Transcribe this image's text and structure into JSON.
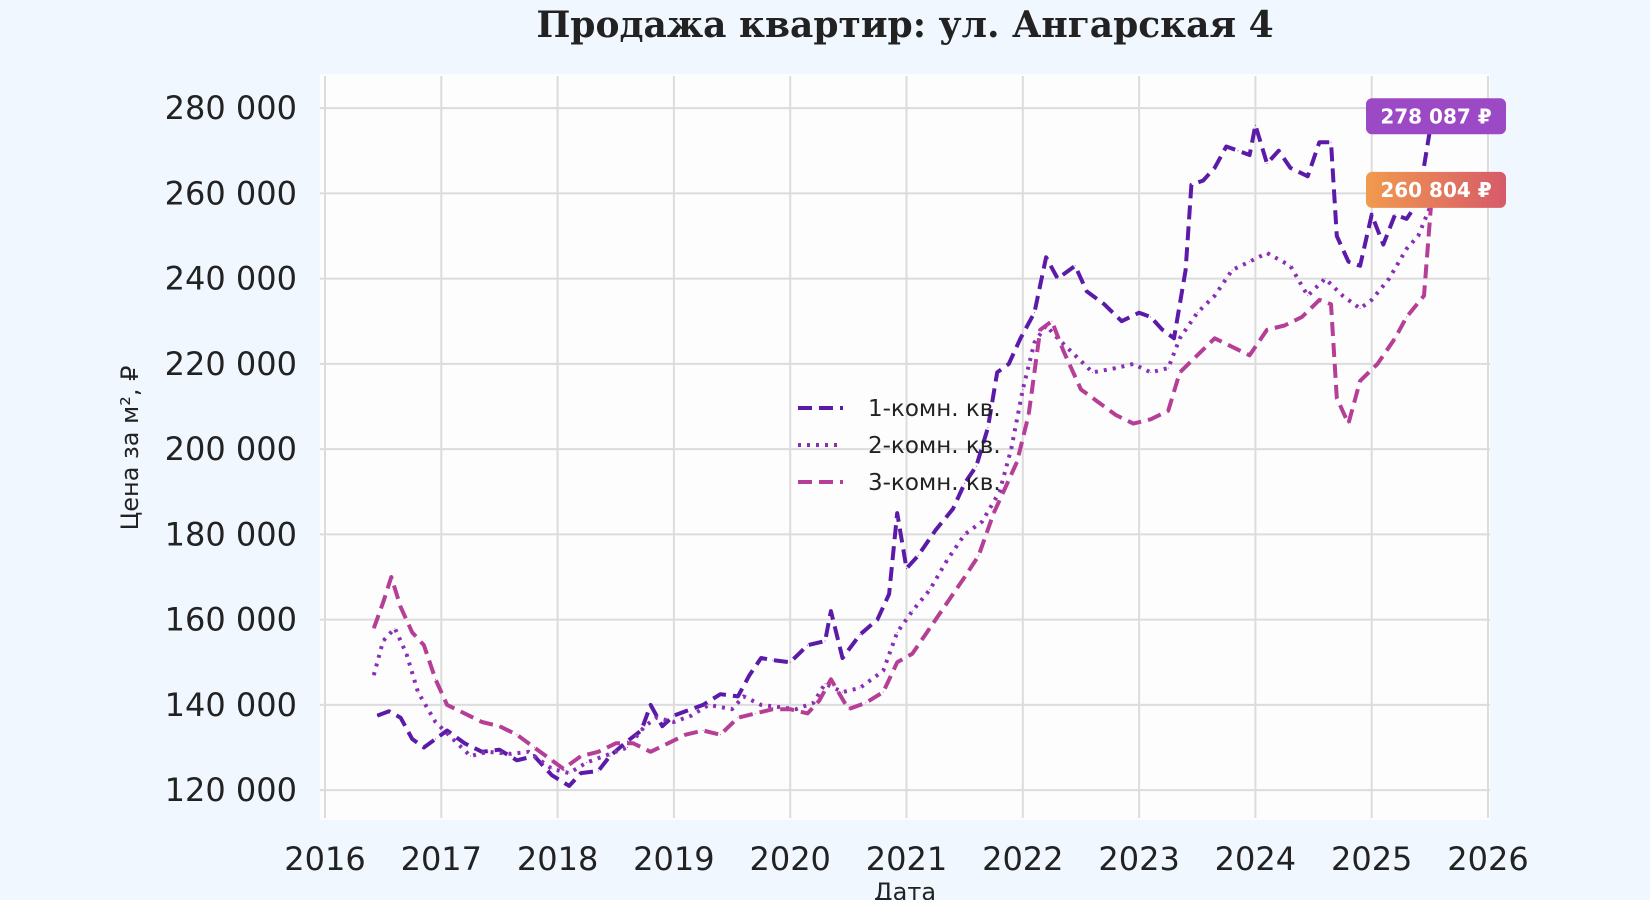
{
  "chart_data": {
    "type": "line",
    "title": "Продажа квартир: ул. Ангарская 4",
    "xlabel": "Дата",
    "ylabel": "Цена за м², ₽",
    "xlim": [
      2016,
      2026
    ],
    "ylim": [
      113000,
      288000
    ],
    "x_ticks": [
      "2016",
      "2017",
      "2018",
      "2019",
      "2020",
      "2021",
      "2022",
      "2023",
      "2024",
      "2025",
      "2026"
    ],
    "y_ticks": [
      "120 000",
      "140 000",
      "160 000",
      "180 000",
      "200 000",
      "220 000",
      "240 000",
      "260 000",
      "280 000"
    ],
    "grid": true,
    "legend_position": "center",
    "series": [
      {
        "name": "1-комн. кв.",
        "color": "#5b1aa8",
        "dash": "dashed",
        "points": [
          [
            2016.45,
            137500
          ],
          [
            2016.55,
            138500
          ],
          [
            2016.65,
            137000
          ],
          [
            2016.75,
            132000
          ],
          [
            2016.85,
            130000
          ],
          [
            2016.95,
            132000
          ],
          [
            2017.05,
            134000
          ],
          [
            2017.2,
            131000
          ],
          [
            2017.35,
            129000
          ],
          [
            2017.5,
            129500
          ],
          [
            2017.65,
            127000
          ],
          [
            2017.8,
            128000
          ],
          [
            2017.95,
            123500
          ],
          [
            2018.1,
            121000
          ],
          [
            2018.2,
            124000
          ],
          [
            2018.35,
            124500
          ],
          [
            2018.45,
            128000
          ],
          [
            2018.6,
            131500
          ],
          [
            2018.72,
            134000
          ],
          [
            2018.8,
            140000
          ],
          [
            2018.9,
            135000
          ],
          [
            2019.0,
            137500
          ],
          [
            2019.1,
            138500
          ],
          [
            2019.25,
            140000
          ],
          [
            2019.4,
            142500
          ],
          [
            2019.55,
            142000
          ],
          [
            2019.65,
            147000
          ],
          [
            2019.75,
            151000
          ],
          [
            2019.85,
            150500
          ],
          [
            2020.0,
            150000
          ],
          [
            2020.15,
            154000
          ],
          [
            2020.3,
            155000
          ],
          [
            2020.35,
            162000
          ],
          [
            2020.45,
            151000
          ],
          [
            2020.6,
            156500
          ],
          [
            2020.75,
            160000
          ],
          [
            2020.85,
            166000
          ],
          [
            2020.92,
            185000
          ],
          [
            2021.0,
            172000
          ],
          [
            2021.1,
            175000
          ],
          [
            2021.25,
            181000
          ],
          [
            2021.4,
            186000
          ],
          [
            2021.5,
            192000
          ],
          [
            2021.6,
            196000
          ],
          [
            2021.7,
            205000
          ],
          [
            2021.78,
            218000
          ],
          [
            2021.88,
            220000
          ],
          [
            2021.98,
            226000
          ],
          [
            2022.1,
            232000
          ],
          [
            2022.2,
            245000
          ],
          [
            2022.3,
            240000
          ],
          [
            2022.45,
            243000
          ],
          [
            2022.55,
            237000
          ],
          [
            2022.7,
            234000
          ],
          [
            2022.85,
            230000
          ],
          [
            2023.0,
            232000
          ],
          [
            2023.1,
            231000
          ],
          [
            2023.2,
            228000
          ],
          [
            2023.3,
            226000
          ],
          [
            2023.4,
            242000
          ],
          [
            2023.45,
            262000
          ],
          [
            2023.55,
            263000
          ],
          [
            2023.65,
            266000
          ],
          [
            2023.75,
            271000
          ],
          [
            2023.85,
            270000
          ],
          [
            2023.95,
            269000
          ],
          [
            2024.0,
            276000
          ],
          [
            2024.1,
            267000
          ],
          [
            2024.2,
            270000
          ],
          [
            2024.3,
            266000
          ],
          [
            2024.45,
            264000
          ],
          [
            2024.55,
            272000
          ],
          [
            2024.65,
            272000
          ],
          [
            2024.7,
            250000
          ],
          [
            2024.8,
            244000
          ],
          [
            2024.9,
            243000
          ],
          [
            2025.0,
            255000
          ],
          [
            2025.1,
            248000
          ],
          [
            2025.2,
            255000
          ],
          [
            2025.3,
            254000
          ],
          [
            2025.4,
            258000
          ],
          [
            2025.52,
            278087
          ]
        ]
      },
      {
        "name": "2-комн. кв.",
        "color": "#8a2fb5",
        "dash": "dotted",
        "points": [
          [
            2016.42,
            147000
          ],
          [
            2016.5,
            155000
          ],
          [
            2016.6,
            158000
          ],
          [
            2016.7,
            152000
          ],
          [
            2016.8,
            143000
          ],
          [
            2016.95,
            136000
          ],
          [
            2017.1,
            132000
          ],
          [
            2017.25,
            128000
          ],
          [
            2017.4,
            129000
          ],
          [
            2017.6,
            128500
          ],
          [
            2017.75,
            129000
          ],
          [
            2017.95,
            125000
          ],
          [
            2018.1,
            124000
          ],
          [
            2018.25,
            126500
          ],
          [
            2018.45,
            128500
          ],
          [
            2018.6,
            130000
          ],
          [
            2018.75,
            135000
          ],
          [
            2018.85,
            137000
          ],
          [
            2019.0,
            136000
          ],
          [
            2019.15,
            137500
          ],
          [
            2019.3,
            140000
          ],
          [
            2019.5,
            139000
          ],
          [
            2019.6,
            142000
          ],
          [
            2019.75,
            140000
          ],
          [
            2019.9,
            139500
          ],
          [
            2020.05,
            139000
          ],
          [
            2020.2,
            140500
          ],
          [
            2020.3,
            145000
          ],
          [
            2020.45,
            143000
          ],
          [
            2020.6,
            144000
          ],
          [
            2020.8,
            148000
          ],
          [
            2020.92,
            157000
          ],
          [
            2021.05,
            162000
          ],
          [
            2021.2,
            167000
          ],
          [
            2021.35,
            174000
          ],
          [
            2021.5,
            180000
          ],
          [
            2021.65,
            183000
          ],
          [
            2021.8,
            190000
          ],
          [
            2021.9,
            200000
          ],
          [
            2022.0,
            214000
          ],
          [
            2022.1,
            225000
          ],
          [
            2022.2,
            229000
          ],
          [
            2022.3,
            226000
          ],
          [
            2022.45,
            222000
          ],
          [
            2022.6,
            218000
          ],
          [
            2022.8,
            219000
          ],
          [
            2022.95,
            220000
          ],
          [
            2023.1,
            218000
          ],
          [
            2023.25,
            219000
          ],
          [
            2023.35,
            226000
          ],
          [
            2023.5,
            232000
          ],
          [
            2023.65,
            236000
          ],
          [
            2023.8,
            242000
          ],
          [
            2023.95,
            244000
          ],
          [
            2024.1,
            246000
          ],
          [
            2024.3,
            243000
          ],
          [
            2024.45,
            236000
          ],
          [
            2024.6,
            240000
          ],
          [
            2024.75,
            236000
          ],
          [
            2024.9,
            233000
          ],
          [
            2025.0,
            235000
          ],
          [
            2025.15,
            240000
          ],
          [
            2025.3,
            247000
          ],
          [
            2025.4,
            250000
          ],
          [
            2025.52,
            258000
          ]
        ]
      },
      {
        "name": "3-комн. кв.",
        "color": "#b53f96",
        "dash": "dashed",
        "points": [
          [
            2016.42,
            158000
          ],
          [
            2016.5,
            164000
          ],
          [
            2016.57,
            170000
          ],
          [
            2016.65,
            163000
          ],
          [
            2016.75,
            157000
          ],
          [
            2016.85,
            154000
          ],
          [
            2016.95,
            146000
          ],
          [
            2017.05,
            140000
          ],
          [
            2017.2,
            138000
          ],
          [
            2017.35,
            136000
          ],
          [
            2017.5,
            135000
          ],
          [
            2017.65,
            133000
          ],
          [
            2017.8,
            130000
          ],
          [
            2017.95,
            127000
          ],
          [
            2018.05,
            125000
          ],
          [
            2018.2,
            128000
          ],
          [
            2018.35,
            129000
          ],
          [
            2018.5,
            131000
          ],
          [
            2018.65,
            131000
          ],
          [
            2018.8,
            129000
          ],
          [
            2018.95,
            131000
          ],
          [
            2019.1,
            133000
          ],
          [
            2019.25,
            134000
          ],
          [
            2019.4,
            133000
          ],
          [
            2019.55,
            137000
          ],
          [
            2019.7,
            138000
          ],
          [
            2019.85,
            139000
          ],
          [
            2020.0,
            139000
          ],
          [
            2020.15,
            138000
          ],
          [
            2020.25,
            141000
          ],
          [
            2020.35,
            146000
          ],
          [
            2020.5,
            139000
          ],
          [
            2020.65,
            140500
          ],
          [
            2020.8,
            143000
          ],
          [
            2020.92,
            150000
          ],
          [
            2021.05,
            152000
          ],
          [
            2021.2,
            158000
          ],
          [
            2021.35,
            164000
          ],
          [
            2021.5,
            170000
          ],
          [
            2021.62,
            175000
          ],
          [
            2021.75,
            185000
          ],
          [
            2021.85,
            191000
          ],
          [
            2021.95,
            197000
          ],
          [
            2022.05,
            208000
          ],
          [
            2022.15,
            228000
          ],
          [
            2022.25,
            230000
          ],
          [
            2022.35,
            223000
          ],
          [
            2022.5,
            214000
          ],
          [
            2022.65,
            211000
          ],
          [
            2022.8,
            208000
          ],
          [
            2022.95,
            206000
          ],
          [
            2023.1,
            207000
          ],
          [
            2023.25,
            209000
          ],
          [
            2023.35,
            218000
          ],
          [
            2023.5,
            222000
          ],
          [
            2023.65,
            226000
          ],
          [
            2023.8,
            224000
          ],
          [
            2023.95,
            222000
          ],
          [
            2024.1,
            228000
          ],
          [
            2024.25,
            229000
          ],
          [
            2024.4,
            231000
          ],
          [
            2024.55,
            235000
          ],
          [
            2024.65,
            234000
          ],
          [
            2024.7,
            212000
          ],
          [
            2024.8,
            206000
          ],
          [
            2024.9,
            216000
          ],
          [
            2025.05,
            220000
          ],
          [
            2025.2,
            226000
          ],
          [
            2025.3,
            231000
          ],
          [
            2025.45,
            236000
          ],
          [
            2025.52,
            260804
          ]
        ]
      }
    ],
    "last_value_labels": [
      {
        "text": "278 087 ₽",
        "color": "#9b49c4",
        "value": 278087
      },
      {
        "text": "260 804 ₽",
        "color": "#e07f56",
        "value": 260804
      }
    ]
  }
}
